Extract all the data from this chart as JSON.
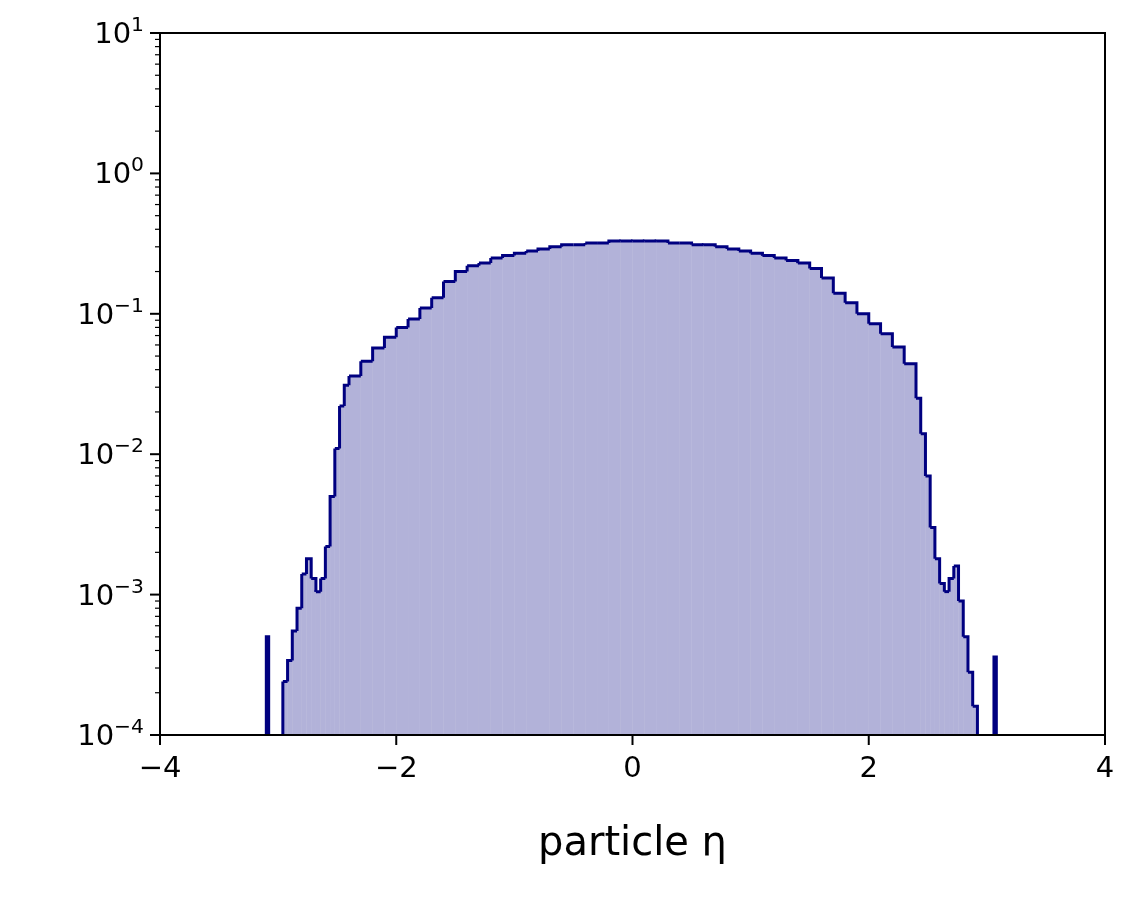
{
  "chart_data": {
    "type": "histogram",
    "xlabel": "particle η",
    "color": "#000080",
    "log": "y",
    "bins": [
      -3.1,
      -3.08,
      -2.96,
      -2.92,
      -2.88,
      -2.84,
      -2.8,
      -2.76,
      -2.72,
      -2.68,
      -2.64,
      -2.6,
      -2.56,
      -2.52,
      -2.48,
      -2.44,
      -2.4,
      -2.3,
      -2.2,
      -2.1,
      -2.0,
      -1.9,
      -1.8,
      -1.7,
      -1.6,
      -1.5,
      -1.4,
      -1.3,
      -1.2,
      -1.1,
      -1.0,
      -0.9,
      -0.8,
      -0.7,
      -0.6,
      -0.5,
      -0.4,
      -0.3,
      -0.2,
      -0.1,
      0,
      0.1,
      0.2,
      0.3,
      0.4,
      0.5,
      0.6,
      0.7,
      0.8,
      0.9,
      1.0,
      1.1,
      1.2,
      1.3,
      1.4,
      1.5,
      1.6,
      1.7,
      1.8,
      1.9,
      2.0,
      2.1,
      2.2,
      2.3,
      2.4,
      2.44,
      2.48,
      2.52,
      2.56,
      2.6,
      2.64,
      2.68,
      2.72,
      2.76,
      2.8,
      2.84,
      2.88,
      2.92,
      3.06,
      3.08
    ],
    "values": [
      0.0005,
      null,
      0.00024,
      0.00034,
      0.00055,
      0.0008,
      0.0014,
      0.0018,
      0.0013,
      0.00105,
      0.0013,
      0.0022,
      0.005,
      0.011,
      0.022,
      0.031,
      0.036,
      0.046,
      0.057,
      0.068,
      0.08,
      0.092,
      0.11,
      0.13,
      0.17,
      0.2,
      0.22,
      0.23,
      0.25,
      0.26,
      0.27,
      0.28,
      0.29,
      0.3,
      0.31,
      0.31,
      0.32,
      0.32,
      0.33,
      0.33,
      0.33,
      0.33,
      0.33,
      0.32,
      0.32,
      0.31,
      0.31,
      0.3,
      0.29,
      0.28,
      0.27,
      0.26,
      0.25,
      0.24,
      0.23,
      0.21,
      0.18,
      0.14,
      0.12,
      0.1,
      0.085,
      0.072,
      0.058,
      0.044,
      0.025,
      0.014,
      0.007,
      0.003,
      0.0018,
      0.0012,
      0.00105,
      0.0013,
      0.0016,
      0.0009,
      0.0005,
      0.00028,
      0.00016,
      null,
      0.00036
    ],
    "xlim": [
      -4,
      4
    ],
    "xticks": [
      {
        "value": -4,
        "label": "−4"
      },
      {
        "value": -2,
        "label": "−2"
      },
      0,
      2,
      4
    ],
    "ylim": [
      0.0001,
      10
    ],
    "yticks": [
      {
        "value": 0.0001,
        "label": "10$^{−4}$"
      },
      {
        "value": 0.0002,
        "label": null
      },
      {
        "value": 0.0003,
        "label": null
      },
      {
        "value": 0.0004,
        "label": null
      },
      {
        "value": 0.0005,
        "label": null
      },
      {
        "value": 0.0006,
        "label": null
      },
      {
        "value": 0.0007,
        "label": null
      },
      {
        "value": 0.0008,
        "label": null
      },
      {
        "value": 0.0009,
        "label": null
      },
      {
        "value": 0.001,
        "label": "10$^{−3}$"
      },
      {
        "value": 0.002,
        "label": null
      },
      {
        "value": 0.003,
        "label": null
      },
      {
        "value": 0.004,
        "label": null
      },
      {
        "value": 0.005,
        "label": null
      },
      {
        "value": 0.006,
        "label": null
      },
      {
        "value": 0.007,
        "label": null
      },
      {
        "value": 0.008,
        "label": null
      },
      {
        "value": 0.009,
        "label": null
      },
      {
        "value": 0.01,
        "label": "10$^{−2}$"
      },
      {
        "value": 0.02,
        "label": null
      },
      {
        "value": 0.03,
        "label": null
      },
      {
        "value": 0.04,
        "label": null
      },
      {
        "value": 0.05,
        "label": null
      },
      {
        "value": 0.06,
        "label": null
      },
      {
        "value": 0.07,
        "label": null
      },
      {
        "value": 0.08,
        "label": null
      },
      {
        "value": 0.09,
        "label": null
      },
      {
        "value": 0.1,
        "label": "10$^{−1}$"
      },
      {
        "value": 0.2,
        "label": null
      },
      {
        "value": 0.3,
        "label": null
      },
      {
        "value": 0.4,
        "label": null
      },
      {
        "value": 0.5,
        "label": null
      },
      {
        "value": 0.6,
        "label": null
      },
      {
        "value": 0.7,
        "label": null
      },
      {
        "value": 0.8,
        "label": null
      },
      {
        "value": 0.9,
        "label": null
      },
      {
        "value": 1,
        "label": "10$^{0}$"
      },
      {
        "value": 2,
        "label": null
      },
      {
        "value": 3,
        "label": null
      },
      {
        "value": 4,
        "label": null
      },
      {
        "value": 5,
        "label": null
      },
      {
        "value": 6,
        "label": null
      },
      {
        "value": 7,
        "label": null
      },
      {
        "value": 8,
        "label": null
      },
      {
        "value": 9,
        "label": null
      },
      {
        "value": 10,
        "label": "10$^{1}$"
      }
    ]
  }
}
